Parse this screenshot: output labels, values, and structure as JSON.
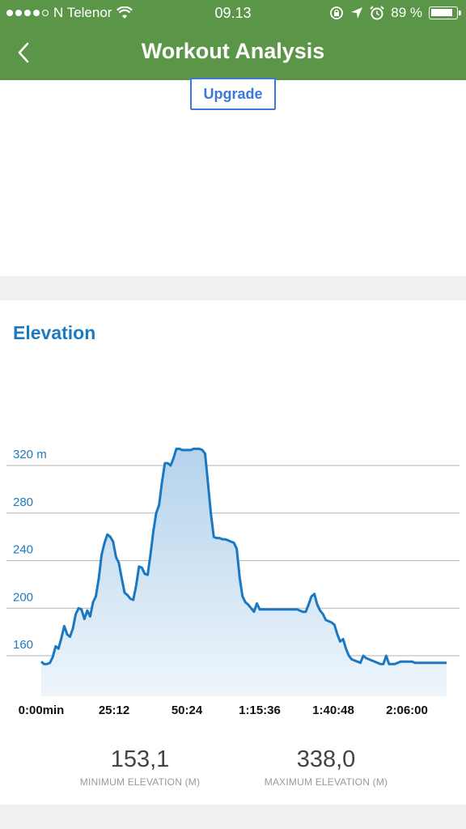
{
  "status_bar": {
    "carrier": "N Telenor",
    "time": "09.13",
    "battery": "89 %",
    "battery_level": 0.89,
    "signal_bars": 4,
    "signal_total": 5,
    "icons": [
      "wifi-icon",
      "rotation-lock-icon",
      "location-arrow-icon",
      "alarm-icon",
      "battery-icon"
    ]
  },
  "header": {
    "title": "Workout Analysis",
    "back_icon": "chevron-left-icon",
    "color": "#5b9548"
  },
  "upgrade": {
    "label": "Upgrade"
  },
  "elevation": {
    "title": "Elevation",
    "accent": "#1b7bc0",
    "min_value": "153,1",
    "min_label": "MINIMUM ELEVATION (M)",
    "max_value": "338,0",
    "max_label": "MAXIMUM ELEVATION (M)"
  },
  "chart_data": {
    "type": "area",
    "title": "",
    "xlabel": "",
    "ylabel": "",
    "y_tick_labels": [
      "320 m",
      "280",
      "240",
      "200",
      "160"
    ],
    "y_tick_values": [
      320,
      280,
      240,
      200,
      160
    ],
    "x_tick_labels": [
      "0:00min",
      "25:12",
      "50:24",
      "1:15:36",
      "1:40:48",
      "2:06:00"
    ],
    "x_tick_values": [
      0,
      25.2,
      50.4,
      75.6,
      100.8,
      126
    ],
    "xlim": [
      0,
      141
    ],
    "ylim": [
      140,
      345
    ],
    "grid": true,
    "series": [
      {
        "x": [
          0,
          1,
          2,
          3,
          4,
          5,
          6,
          7,
          8,
          9,
          10,
          11,
          12,
          13,
          14,
          15,
          16,
          17,
          18,
          19,
          20,
          21,
          22,
          23,
          24,
          25,
          26,
          27,
          28,
          29,
          30,
          31,
          32,
          33,
          34,
          35,
          36,
          37,
          38,
          39,
          40,
          41,
          42,
          43,
          44,
          45,
          46,
          47,
          48,
          49,
          50,
          51,
          52,
          53,
          54,
          55,
          56,
          57,
          58,
          59,
          60,
          61,
          62,
          63,
          64,
          65,
          66,
          67,
          68,
          69,
          70,
          71,
          72,
          73,
          74,
          75,
          76,
          77,
          78,
          79,
          80,
          81,
          82,
          83,
          84,
          85,
          86,
          87,
          88,
          89,
          90,
          91,
          92,
          93,
          94,
          95,
          96,
          97,
          98,
          99,
          100,
          101,
          102,
          103,
          104,
          105,
          106,
          107,
          108,
          109,
          110,
          111,
          112,
          113,
          114,
          115,
          116,
          117,
          118,
          119,
          120,
          121,
          122,
          123,
          124,
          125,
          126,
          127,
          128,
          129,
          130,
          131,
          132,
          133,
          134,
          135,
          136,
          137,
          138,
          139,
          140,
          141
        ],
        "values": [
          155,
          153,
          153,
          154,
          159,
          168,
          166,
          175,
          185,
          178,
          176,
          183,
          195,
          200,
          199,
          191,
          198,
          193,
          205,
          210,
          225,
          245,
          255,
          262,
          260,
          256,
          243,
          238,
          225,
          213,
          211,
          208,
          207,
          219,
          235,
          234,
          229,
          228,
          245,
          265,
          280,
          287,
          306,
          322,
          322,
          320,
          326,
          334,
          334,
          333,
          333,
          333,
          333,
          334,
          334,
          334,
          333,
          330,
          305,
          280,
          260,
          259,
          259,
          258,
          258,
          257,
          256,
          255,
          250,
          226,
          210,
          205,
          203,
          200,
          197,
          204,
          199,
          199,
          199,
          199,
          199,
          199,
          199,
          199,
          199,
          199,
          199,
          199,
          199,
          199,
          198,
          197,
          197,
          203,
          210,
          212,
          203,
          198,
          195,
          190,
          189,
          188,
          186,
          178,
          172,
          174,
          166,
          160,
          157,
          156,
          155,
          154,
          160,
          158,
          157,
          156,
          155,
          154,
          153,
          153,
          160,
          153,
          153,
          153,
          154,
          155,
          155,
          155,
          155,
          155,
          154,
          154,
          154,
          154,
          154,
          154,
          154,
          154,
          154,
          154,
          154,
          154
        ]
      }
    ]
  }
}
